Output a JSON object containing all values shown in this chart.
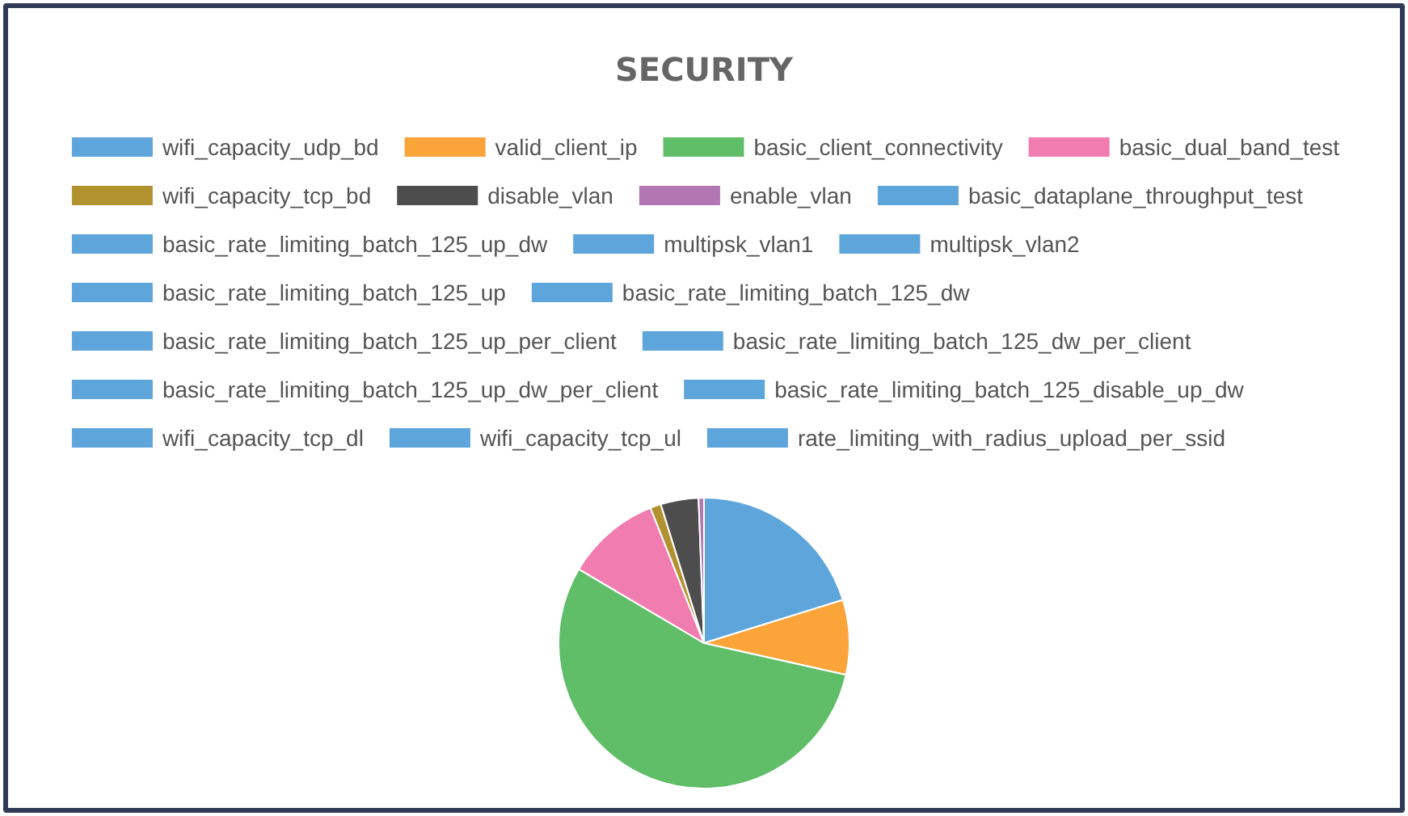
{
  "chart_data": {
    "type": "pie",
    "title": "SECURITY",
    "legend": "top",
    "categories": [
      "wifi_capacity_udp_bd",
      "valid_client_ip",
      "basic_client_connectivity",
      "basic_dual_band_test",
      "wifi_capacity_tcp_bd",
      "disable_vlan",
      "enable_vlan",
      "basic_dataplane_throughput_test",
      "basic_rate_limiting_batch_125_up_dw",
      "multipsk_vlan1",
      "multipsk_vlan2",
      "basic_rate_limiting_batch_125_up",
      "basic_rate_limiting_batch_125_dw",
      "basic_rate_limiting_batch_125_up_per_client",
      "basic_rate_limiting_batch_125_dw_per_client",
      "basic_rate_limiting_batch_125_up_dw_per_client",
      "basic_rate_limiting_batch_125_disable_up_dw",
      "wifi_capacity_tcp_dl",
      "wifi_capacity_tcp_ul",
      "rate_limiting_with_radius_upload_per_ssid"
    ],
    "values": [
      20.2,
      8.3,
      55.0,
      10.5,
      1.2,
      4.2,
      0.6,
      0,
      0,
      0,
      0,
      0,
      0,
      0,
      0,
      0,
      0,
      0,
      0,
      0
    ],
    "colors": [
      "#5da5da",
      "#faa43a",
      "#60bd68",
      "#f17cb0",
      "#b2912f",
      "#4d4d4d",
      "#b276b2",
      "#5da5da",
      "#5da5da",
      "#5da5da",
      "#5da5da",
      "#5da5da",
      "#5da5da",
      "#5da5da",
      "#5da5da",
      "#5da5da",
      "#5da5da",
      "#5da5da",
      "#5da5da",
      "#5da5da"
    ]
  }
}
